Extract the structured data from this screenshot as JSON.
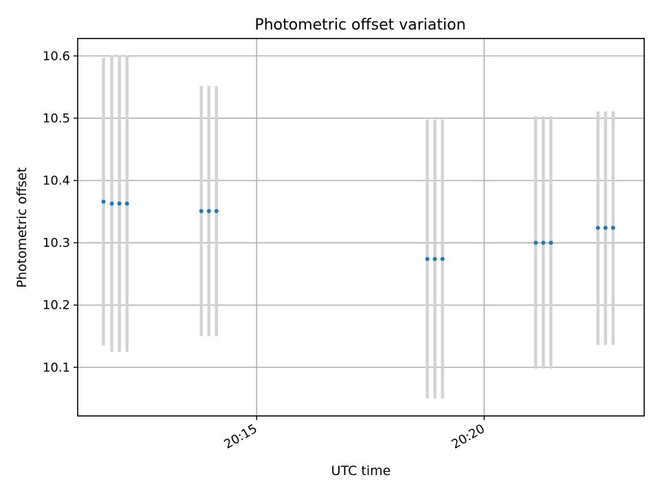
{
  "chart_data": {
    "type": "scatter",
    "title": "Photometric offset variation",
    "xlabel": "UTC time",
    "ylabel": "Photometric offset",
    "x_ticks": [
      {
        "value": "20:15",
        "label": "20:15"
      },
      {
        "value": "20:20",
        "label": "20:20"
      }
    ],
    "y_ticks": [
      10.1,
      10.2,
      10.3,
      10.4,
      10.5,
      10.6
    ],
    "y_tick_labels": [
      "10.1",
      "10.2",
      "10.3",
      "10.4",
      "10.5",
      "10.6"
    ],
    "xlim": [
      "20:11:04",
      "20:23:31"
    ],
    "ylim": [
      10.022,
      10.628
    ],
    "grid": true,
    "point_color": "#1f77b4",
    "errorbar_color": "#d3d3d3",
    "series": [
      {
        "points": [
          {
            "x": "20:11:38",
            "y": 10.366,
            "ylow": 10.135,
            "yhigh": 10.597
          },
          {
            "x": "20:11:49",
            "y": 10.363,
            "ylow": 10.125,
            "yhigh": 10.601
          },
          {
            "x": "20:11:59",
            "y": 10.363,
            "ylow": 10.125,
            "yhigh": 10.601
          },
          {
            "x": "20:12:09",
            "y": 10.363,
            "ylow": 10.125,
            "yhigh": 10.601
          },
          {
            "x": "20:13:47",
            "y": 10.351,
            "ylow": 10.15,
            "yhigh": 10.552
          },
          {
            "x": "20:13:57",
            "y": 10.351,
            "ylow": 10.15,
            "yhigh": 10.552
          },
          {
            "x": "20:14:07",
            "y": 10.351,
            "ylow": 10.15,
            "yhigh": 10.552
          },
          {
            "x": "20:18:45",
            "y": 10.274,
            "ylow": 10.05,
            "yhigh": 10.498
          },
          {
            "x": "20:18:55",
            "y": 10.274,
            "ylow": 10.05,
            "yhigh": 10.498
          },
          {
            "x": "20:19:05",
            "y": 10.274,
            "ylow": 10.05,
            "yhigh": 10.498
          },
          {
            "x": "20:21:08",
            "y": 10.3,
            "ylow": 10.098,
            "yhigh": 10.503
          },
          {
            "x": "20:21:18",
            "y": 10.3,
            "ylow": 10.098,
            "yhigh": 10.503
          },
          {
            "x": "20:21:28",
            "y": 10.3,
            "ylow": 10.098,
            "yhigh": 10.503
          },
          {
            "x": "20:22:30",
            "y": 10.324,
            "ylow": 10.136,
            "yhigh": 10.511
          },
          {
            "x": "20:22:40",
            "y": 10.324,
            "ylow": 10.136,
            "yhigh": 10.511
          },
          {
            "x": "20:22:50",
            "y": 10.324,
            "ylow": 10.136,
            "yhigh": 10.511
          }
        ]
      }
    ]
  }
}
